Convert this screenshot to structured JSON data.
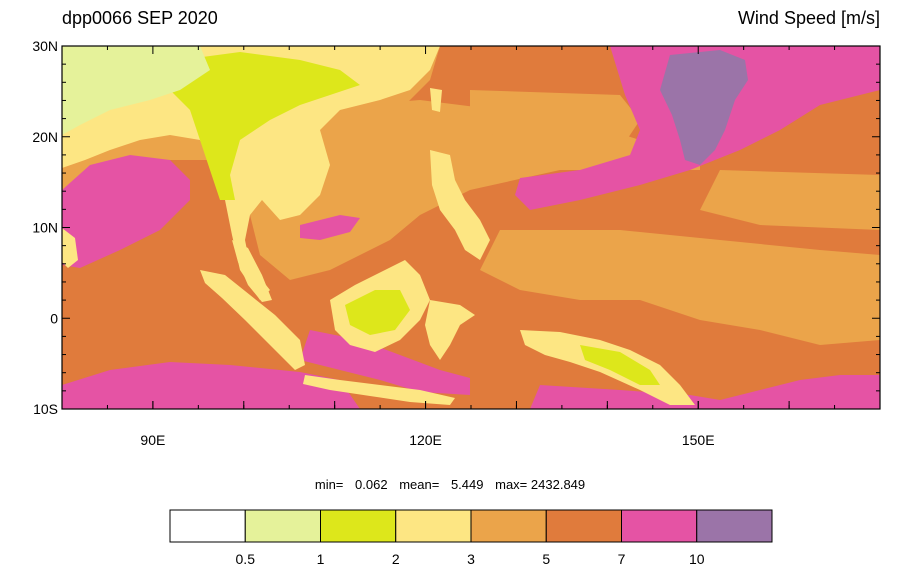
{
  "title_left": "dpp0066 SEP 2020",
  "title_right": "Wind Speed [m/s]",
  "stats": {
    "min_label": "min=",
    "min_value": "0.062",
    "mean_label": "mean=",
    "mean_value": "5.449",
    "max_label": "max=",
    "max_value": "2432.849"
  },
  "map": {
    "lon_range": [
      80,
      170
    ],
    "lat_range": [
      -10,
      30
    ],
    "lat_ticks": [
      {
        "value": 30,
        "label": "30N"
      },
      {
        "value": 20,
        "label": "20N"
      },
      {
        "value": 10,
        "label": "10N"
      },
      {
        "value": 0,
        "label": "0"
      },
      {
        "value": -10,
        "label": "10S"
      }
    ],
    "lon_ticks": [
      {
        "value": 90,
        "label": "90E"
      },
      {
        "value": 120,
        "label": "120E"
      },
      {
        "value": 150,
        "label": "150E"
      }
    ],
    "background_color": "#e07b3c"
  },
  "colorbar": {
    "colors": [
      "#ffffff",
      "#e5f29a",
      "#dde71b",
      "#fde683",
      "#eba44a",
      "#e07b3c",
      "#e553a4",
      "#9b74a8"
    ],
    "labels": [
      "0.5",
      "1",
      "2",
      "3",
      "5",
      "7",
      "10"
    ]
  }
}
